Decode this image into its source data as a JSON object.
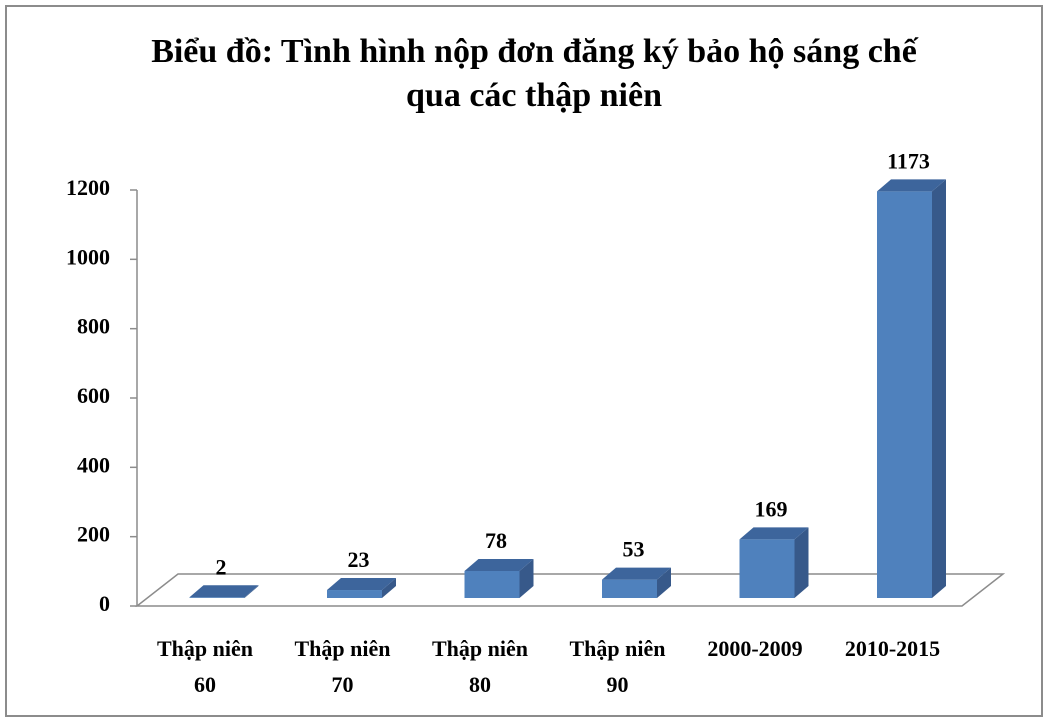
{
  "chart_data": {
    "type": "bar3d",
    "title": "Biểu đồ: Tình hình nộp đơn đăng ký bảo hộ sáng chế qua các thập niên",
    "categories": [
      "Thập niên 60",
      "Thập niên 70",
      "Thập niên 80",
      "Thập niên 90",
      "2000-2009",
      "2010-2015"
    ],
    "values": [
      2,
      23,
      78,
      53,
      169,
      1173
    ],
    "color": "#4f81bd",
    "ylim": [
      0,
      1200
    ],
    "yticks": [
      0,
      200,
      400,
      600,
      800,
      1000,
      1200
    ],
    "grid": false
  }
}
